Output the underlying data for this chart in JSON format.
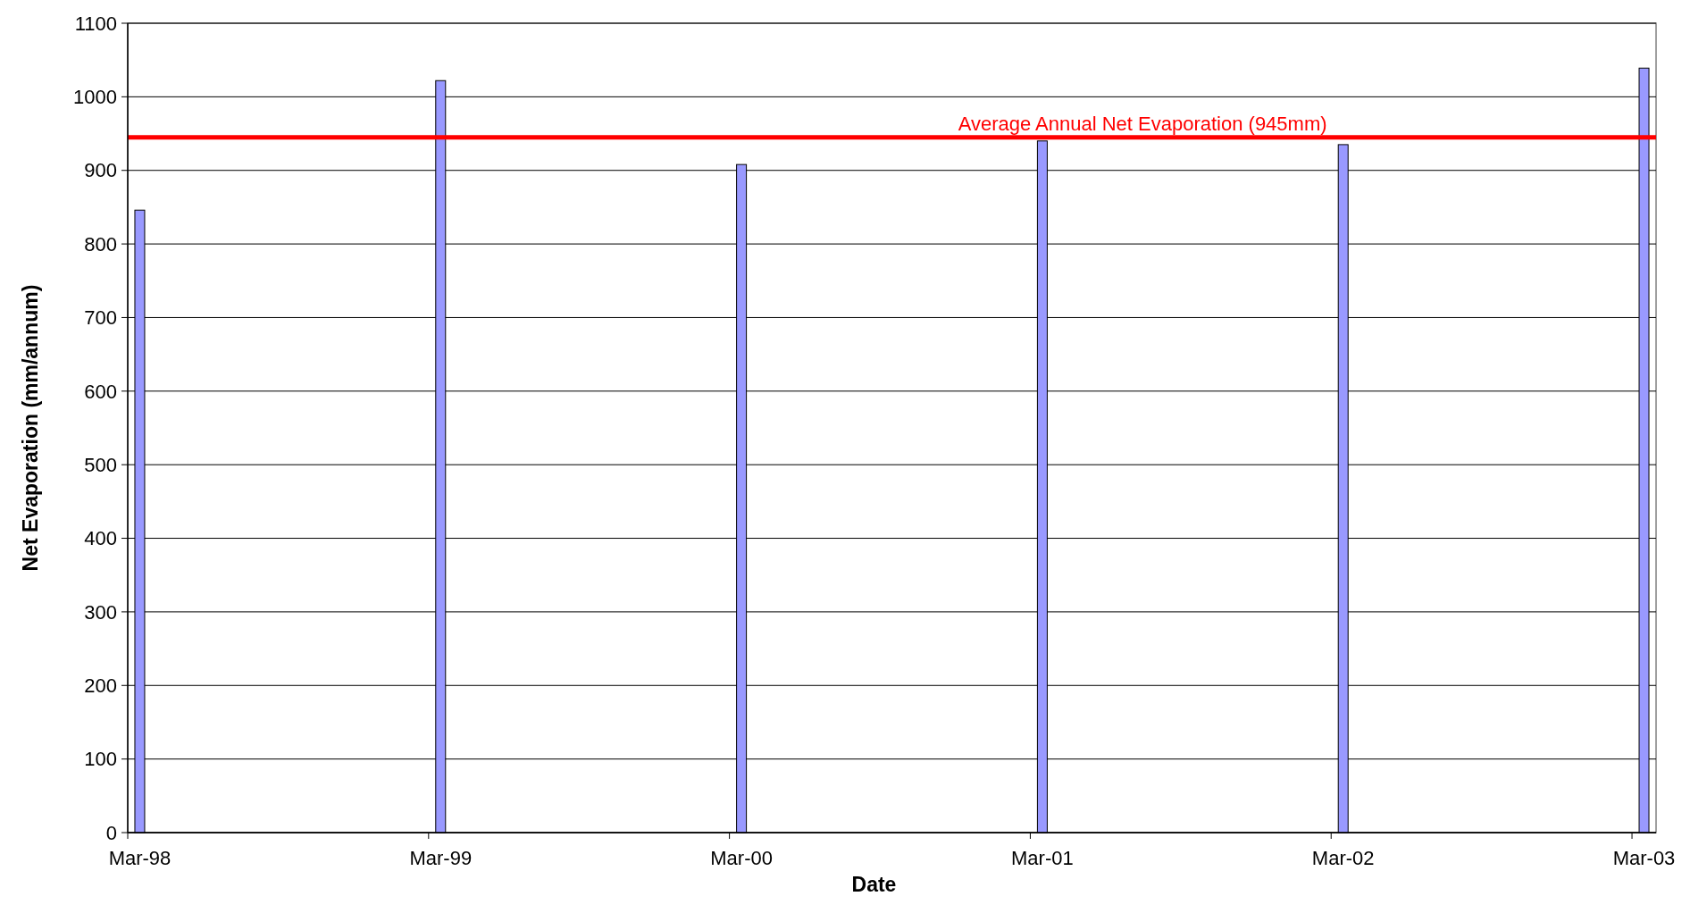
{
  "chart_data": {
    "type": "bar",
    "xlabel": "Date",
    "ylabel": "Net Evaporation (mm/annum)",
    "categories": [
      "Mar-98",
      "Mar-99",
      "Mar-00",
      "Mar-01",
      "Mar-02",
      "Mar-03"
    ],
    "values": [
      846,
      1022,
      908,
      940,
      935,
      1039
    ],
    "color": "#9999ff",
    "ylim": [
      0,
      1100
    ],
    "yticks": [
      0,
      100,
      200,
      300,
      400,
      500,
      600,
      700,
      800,
      900,
      1000,
      1100
    ],
    "grid": "y",
    "ref_lines": [
      {
        "axis": "y",
        "value": 945,
        "label": "Average Annual Net Evaporation (945mm)",
        "color": "#ff0000"
      }
    ]
  }
}
